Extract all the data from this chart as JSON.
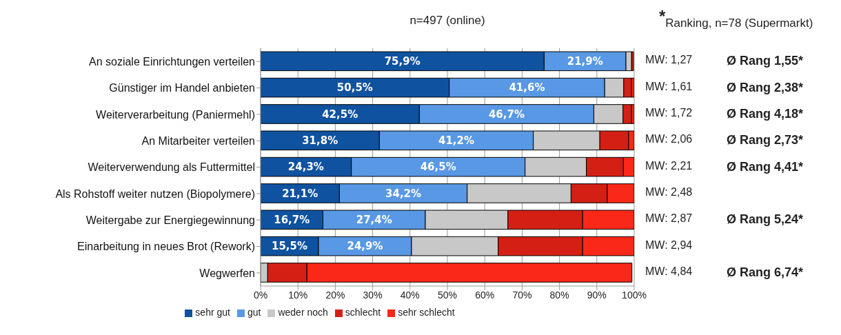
{
  "chart_data": {
    "type": "bar",
    "orientation": "horizontal",
    "stacked": true,
    "title": "n=497 (online)",
    "categories": [
      "An soziale Einrichtungen verteilen",
      "Günstiger im Handel anbieten",
      "Weiterverarbeitung (Paniermehl)",
      "An Mitarbeiter verteilen",
      "Weiterverwendung als Futtermittel",
      "Als Rohstoff weiter nutzen (Biopolymere)",
      "Weitergabe zur Energiegewinnung",
      "Einarbeitung in neues Brot (Rework)",
      "Wegwerfen"
    ],
    "series": [
      {
        "name": "sehr gut",
        "color": "#0f52a0",
        "values": [
          75.9,
          50.5,
          42.5,
          31.8,
          24.3,
          21.1,
          16.7,
          15.5,
          null
        ],
        "value_labels": [
          "75,9%",
          "50,5%",
          "42,5%",
          "31,8%",
          "24,3%",
          "21,1%",
          "16,7%",
          "15,5%",
          null
        ]
      },
      {
        "name": "gut",
        "color": "#5898e4",
        "values": [
          21.9,
          41.6,
          46.7,
          41.2,
          46.5,
          34.2,
          27.4,
          24.9,
          null
        ],
        "value_labels": [
          "21,9%",
          "41,6%",
          "46,7%",
          "41,2%",
          "46,5%",
          "34,2%",
          "27,4%",
          "24,9%",
          null
        ]
      },
      {
        "name": "weder noch",
        "color": "#c8c8c8",
        "values": [
          1.5,
          5.1,
          7.8,
          17.8,
          16.4,
          27.8,
          22.1,
          23.2,
          1.9
        ]
      },
      {
        "name": "schlecht",
        "color": "#d42014",
        "values": [
          0.5,
          2.1,
          2.3,
          7.7,
          9.9,
          9.7,
          20.0,
          22.6,
          10.5
        ]
      },
      {
        "name": "sehr schlecht",
        "color": "#fa2818",
        "values": [
          null,
          0.7,
          0.7,
          1.5,
          2.9,
          7.2,
          13.8,
          13.8,
          87.0
        ]
      }
    ],
    "xlim": [
      0,
      100
    ],
    "xticks": [
      {
        "value": 0,
        "label": "0%"
      },
      {
        "value": 10,
        "label": "10%"
      },
      {
        "value": 20,
        "label": "20%"
      },
      {
        "value": 30,
        "label": "30%"
      },
      {
        "value": 40,
        "label": "40%"
      },
      {
        "value": 50,
        "label": "50%"
      },
      {
        "value": 60,
        "label": "60%"
      },
      {
        "value": 70,
        "label": "70%"
      },
      {
        "value": 80,
        "label": "80%"
      },
      {
        "value": 90,
        "label": "90%"
      },
      {
        "value": 100,
        "label": "100%"
      }
    ],
    "grid": "x",
    "legend": "bottom",
    "annotations": [
      "$^{*}$Ranking, n=78 (Supermarkt)",
      "MW: 1,27",
      "Ø Rang 1,55*",
      "MW: 1,61",
      "Ø Rang 2,38*",
      "MW: 1,72",
      "Ø Rang 4,18*",
      "MW: 2,06",
      "Ø Rang 2,73*",
      "MW: 2,21",
      "Ø Rang 4,41*",
      "MW: 2,48",
      "MW: 2,87",
      "Ø Rang 5,24*",
      "MW: 2,94",
      "MW: 4,84",
      "Ø Rang 6,74*"
    ]
  }
}
